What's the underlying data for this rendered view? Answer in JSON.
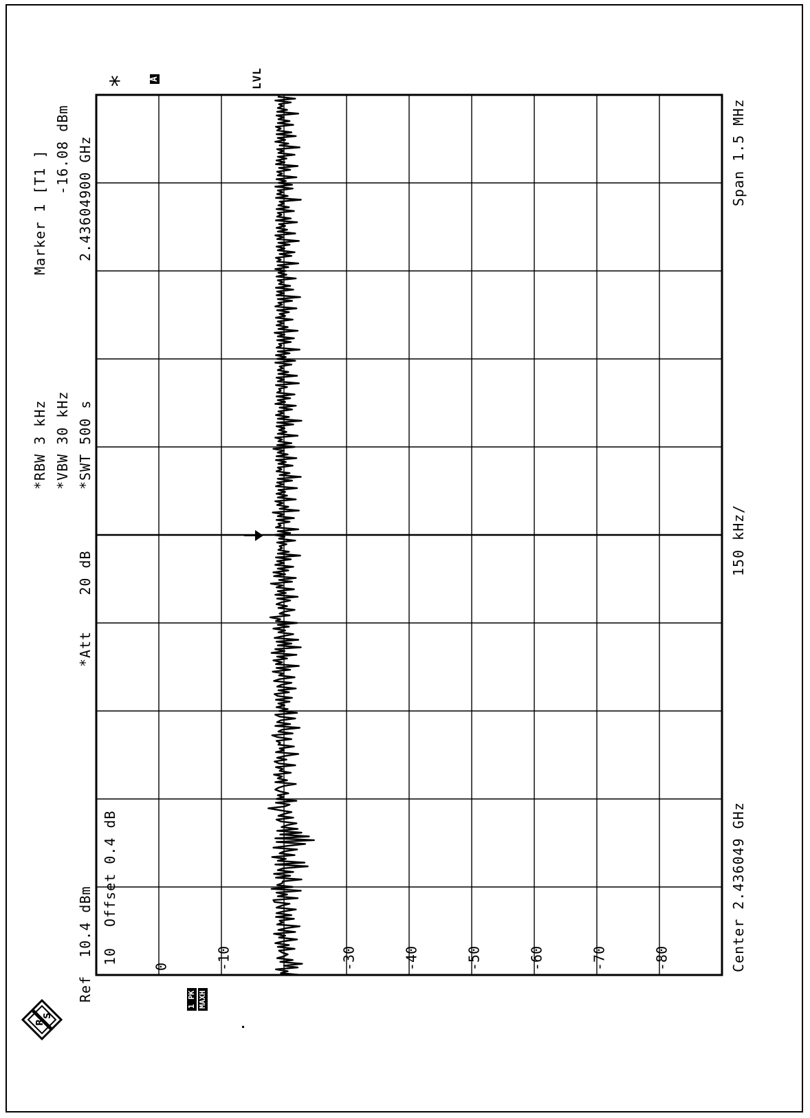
{
  "header": {
    "ref_label": "Ref",
    "ref_value": "10.4 dBm",
    "att_label": "*Att",
    "att_value": "20 dB",
    "rbw": "*RBW 3 kHz",
    "vbw": "*VBW 30 kHz",
    "swt": "*SWT 500 s",
    "marker_title": "Marker 1 [T1 ]",
    "marker_level": "-16.08 dBm",
    "marker_freq": "2.43604900 GHz"
  },
  "left_panel": {
    "offset_scale": "10",
    "offset_text": "Offset  0.4 dB"
  },
  "footer": {
    "center": "Center 2.436049 GHz",
    "per_div": "150 kHz/",
    "span": "Span 1.5 MHz"
  },
  "side": {
    "trace_badge_top": "1 PK",
    "trace_badge_bottom": "MAXH",
    "a_badge": "A",
    "lvl": "LVL",
    "star": "*"
  },
  "colors": {
    "trace": "#000000",
    "grid": "#000000",
    "background": "#ffffff"
  },
  "chart_data": {
    "type": "line",
    "ylim": [
      -89.6,
      10.4
    ],
    "xlim": [
      2.4353,
      2.4368
    ],
    "grid": true,
    "y_tick_labels": [
      "0",
      "-10",
      "-30",
      "-40",
      "-50",
      "-60",
      "-70",
      "-80"
    ],
    "y_tick_values": [
      0,
      -10,
      -30,
      -40,
      -50,
      -60,
      -70,
      -80
    ],
    "marker": {
      "x": 2.436049,
      "y": -16.08
    },
    "series": [
      {
        "x_start": 2.4353,
        "x_step": 1.5e-05,
        "values": [
          -22.3,
          -19.1,
          -20.2,
          -18.3,
          -21.8,
          -19.6,
          -22.5,
          -19.0,
          -21.0,
          -18.5,
          -19.6,
          -20.2,
          -19.3,
          -18.8,
          -21.3,
          -18.6,
          -20.4,
          -18.2,
          -19.5,
          -21.7,
          -18.8,
          -19.8,
          -18.0,
          -21.4,
          -18.7,
          -19.9,
          -22.1,
          -18.5,
          -19.4,
          -18.9,
          -21.2,
          -18.3,
          -20.8,
          -18.4,
          -19.6,
          -21.5,
          -18.4,
          -19.2,
          -20.5,
          -18.1,
          -17.9,
          -21.8,
          -18.6,
          -20.1,
          -18.4,
          -22.3,
          -17.6,
          -21.0,
          -18.5,
          -19.3,
          -19.4,
          -22.4,
          -18.3,
          -20.6,
          -18.0,
          -21.1,
          -18.6,
          -19.5,
          -23.4,
          -18.2,
          -22.9,
          -18.6,
          -19.9,
          -17.7,
          -21.3,
          -18.9,
          -19.6,
          -21.7,
          -17.9,
          -20.3,
          -23.0,
          -18.4,
          -24.4,
          -18.2,
          -23.6,
          -19.0,
          -22.4,
          -18.5,
          -21.8,
          -19.2,
          -20.1,
          -21.6,
          -19.1,
          -18.4,
          -21.1,
          -18.7,
          -19.6,
          -20.8,
          -18.9,
          -17.1,
          -19.7,
          -20.5,
          -18.3,
          -21.6,
          -18.4,
          -19.5,
          -18.6,
          -20.3,
          -19.0,
          -18.2,
          -18.7,
          -19.7,
          -21.5,
          -18.2,
          -20.1,
          -18.6,
          -19.3,
          -18.0,
          -20.7,
          -18.9,
          -19.4,
          -18.3,
          -21.4,
          -18.8,
          -18.1,
          -20.0,
          -18.5,
          -19.8,
          -21.9,
          -18.3,
          -19.6,
          -18.9,
          -21.2,
          -18.7,
          -19.0,
          -18.4,
          -20.8,
          -18.6,
          -17.7,
          -21.0,
          -18.7,
          -19.3,
          -22.1,
          -18.2,
          -20.6,
          -18.5,
          -19.1,
          -21.4,
          -18.9,
          -18.2,
          -21.7,
          -18.8,
          -20.2,
          -18.4,
          -19.7,
          -18.7,
          -20.5,
          -18.3,
          -20.9,
          -18.6,
          -18.1,
          -20.4,
          -18.7,
          -21.5,
          -18.5,
          -19.2,
          -20.8,
          -18.0,
          -18.9,
          -21.3,
          -18.8,
          -19.5,
          -17.8,
          -20.6,
          -18.4,
          -22.0,
          -18.3,
          -19.3,
          -17.9,
          -20.1,
          -18.5,
          -21.6,
          -17.6,
          -19.7,
          -18.2,
          -22.3,
          -18.6,
          -20.8,
          -18.4,
          -21.9,
          -18.1,
          -19.5,
          -21.1,
          -18.7,
          -19.8,
          -17.9,
          -20.4,
          -18.6,
          -21.7,
          -18.3,
          -19.0,
          -17.4,
          -20.5,
          -18.9,
          -19.6,
          -21.3,
          -18.7,
          -20.1,
          -18.4,
          -19.2,
          -20.6,
          -18.5,
          -21.8,
          -18.2,
          -19.9,
          -18.6,
          -21.2,
          -18.4,
          -19.4,
          -17.5,
          -20.9,
          -18.8,
          -21.5,
          -18.0,
          -19.8,
          -17.9,
          -20.3,
          -18.6,
          -21.1,
          -18.2,
          -19.6,
          -18.5,
          -20.7,
          -18.3,
          -22.2,
          -18.6,
          -20.4,
          -18.7,
          -19.3,
          -18.9,
          -20.0,
          -18.5,
          -21.4,
          -18.8,
          -19.7,
          -18.1,
          -20.6,
          -18.6,
          -21.9,
          -18.3,
          -19.1,
          -18.7,
          -20.5,
          -18.4,
          -21.2,
          -18.6,
          -19.6,
          -17.8,
          -22.0,
          -18.9,
          -20.3,
          -18.5,
          -19.4,
          -18.2,
          -21.5,
          -18.6,
          -20.1,
          -18.4,
          -19.8,
          -18.7,
          -21.7,
          -18.3,
          -19.5,
          -18.5,
          -20.9,
          -18.6,
          -22.3,
          -18.9,
          -20.5,
          -18.4,
          -19.2,
          -18.6,
          -21.0,
          -18.7,
          -19.9,
          -18.3,
          -21.6,
          -18.4,
          -20.2,
          -18.6,
          -19.6,
          -17.9,
          -21.3,
          -18.5,
          -20.8,
          -18.7,
          -19.3,
          -18.2,
          -21.8,
          -18.6,
          -20.0,
          -18.8,
          -19.7,
          -18.4,
          -21.1,
          -18.5,
          -22.4,
          -18.6,
          -20.4,
          -18.3,
          -19.5,
          -18.7,
          -20.9,
          -18.9,
          -21.5,
          -18.2,
          -19.8,
          -18.6,
          -20.6,
          -18.4,
          -21.3,
          -18.5,
          -19.1,
          -18.8,
          -20.1,
          -18.3,
          -22.0,
          -18.6,
          -19.6,
          -18.4,
          -21.7,
          -18.7,
          -20.3,
          -18.6,
          -19.4,
          -18.9,
          -20.8,
          -18.2,
          -21.4,
          -18.5,
          -19.9,
          -18.3,
          -20.5,
          -18.6,
          -22.1,
          -18.4,
          -19.2,
          -18.8,
          -20.7,
          -18.5,
          -21.2,
          -18.6,
          -19.7,
          -18.1,
          -21.8,
          -18.7,
          -20.2,
          -18.4,
          -19.5,
          -18.6,
          -21.0,
          -18.3,
          -19.8,
          -18.9,
          -20.4,
          -18.5,
          -21.6,
          -18.2,
          -19.3,
          -18.7,
          -20.9,
          -18.6,
          -22.2,
          -18.4,
          -19.6,
          -18.5,
          -21.1,
          -18.3,
          -20.6,
          -18.8,
          -19.4,
          -18.6,
          -21.5,
          -18.4,
          -20.0,
          -18.7,
          -19.9,
          -18.2,
          -20.3,
          -18.6,
          -21.9,
          -18.5,
          -19.1,
          -18.3,
          -20.8,
          -18.9,
          -21.3,
          -18.6,
          -19.7,
          -18.4,
          -20.5,
          -18.7,
          -22.0,
          -18.5,
          -19.5,
          -18.2,
          -21.4,
          -18.6,
          -20.1,
          -18.4,
          -19.8,
          -18.8,
          -21.7,
          -18.3,
          -20.7,
          -18.5,
          -19.2,
          -18.6,
          -21.2,
          -18.4,
          -20.4,
          -18.7,
          -19.6,
          -18.9,
          -22.3,
          -18.3,
          -20.2,
          -18.5,
          -19.4,
          -18.6,
          -21.0,
          -18.2,
          -20.9,
          -18.7,
          -19.9,
          -18.4,
          -21.6,
          -18.6,
          -19.3,
          -18.5,
          -20.6,
          -18.8,
          -21.8,
          -18.3,
          -19.7,
          -18.4,
          -20.0,
          -18.6,
          -21.3,
          -18.7,
          -19.5,
          -18.5,
          -22.1,
          -18.9,
          -20.3,
          -18.2,
          -19.8,
          -18.6,
          -21.5,
          -18.4,
          -20.8,
          -18.5,
          -19.1,
          -18.3,
          -21.1,
          -18.6,
          -20.5,
          -18.7,
          -19.6,
          -18.4,
          -21.9,
          -18.5,
          -20.1,
          -18.6,
          -19.4,
          -18.8,
          -20.7,
          -18.2,
          -21.4,
          -18.6
        ]
      }
    ]
  }
}
